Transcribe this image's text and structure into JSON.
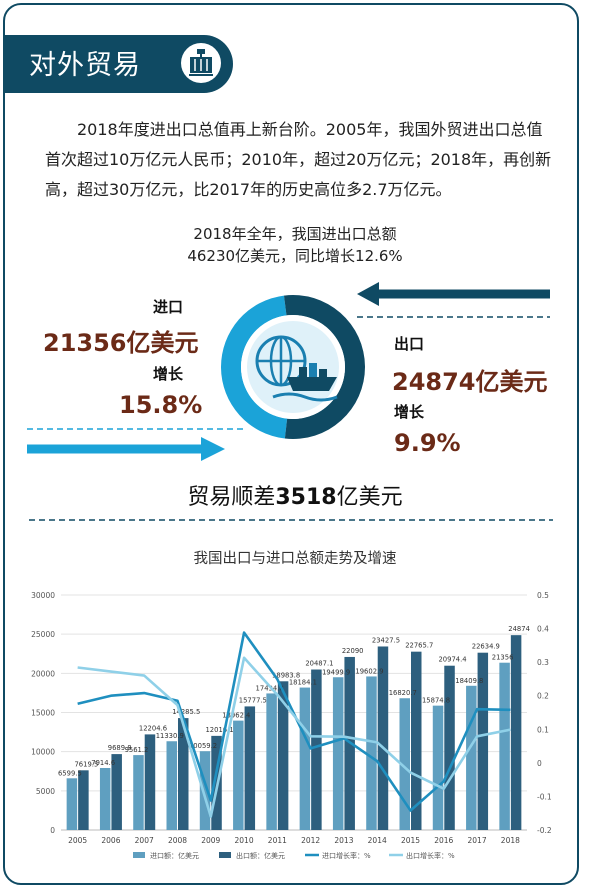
{
  "header": {
    "title": "对外贸易"
  },
  "intro_text": "2018年度进出口总值再上新台阶。2005年，我国外贸进出口总值首次超过10万亿元人民币；2010年，超过20万亿元；2018年，再创新高，超过30万亿元，比2017年的历史高位多2.7万亿元。",
  "summary": {
    "line1": "2018年全年，我国进出口总额",
    "line2": "46230亿美元，同比增长12.6%"
  },
  "import": {
    "label": "进口",
    "value": "21356亿美元",
    "growth_label": "增长",
    "growth": "15.8%",
    "share": 0.462
  },
  "export": {
    "label": "出口",
    "value": "24874亿美元",
    "growth_label": "增长",
    "growth": "9.9%",
    "share": 0.538
  },
  "balance": {
    "prefix": "贸易顺差",
    "value": "3518",
    "suffix": "亿美元"
  },
  "colors": {
    "navy": "#0f4a63",
    "import_blue": "#1ba3d8",
    "bar_import": "#5f9fc0",
    "bar_export": "#2d5f7e",
    "line_export": "#1f8fbf",
    "line_import": "#8fd0e8",
    "value_red": "#6b2a17"
  },
  "chart_data": {
    "type": "bar",
    "title": "我国出口与进口总额走势及增速",
    "categories": [
      "2005",
      "2006",
      "2007",
      "2008",
      "2009",
      "2010",
      "2011",
      "2012",
      "2013",
      "2014",
      "2015",
      "2016",
      "2017",
      "2018"
    ],
    "ylim": [
      0,
      30000
    ],
    "y_ticks": [
      0,
      5000,
      10000,
      15000,
      20000,
      25000,
      30000
    ],
    "y2lim": [
      -0.2,
      0.5
    ],
    "y2_ticks": [
      -0.2,
      -0.1,
      0,
      0.1,
      0.2,
      0.3,
      0.4,
      0.5
    ],
    "series": [
      {
        "name": "进口额：亿美元",
        "kind": "bar",
        "values": [
          6599.5,
          7914.6,
          9561.2,
          11330.9,
          10059.2,
          13962.4,
          17434.8,
          18184.1,
          19499.9,
          19602.9,
          16820.7,
          15874.8,
          18409.8,
          21356
        ]
      },
      {
        "name": "出口额：亿美元",
        "kind": "bar",
        "values": [
          7619.5,
          9689.8,
          12204.6,
          14285.5,
          12016.1,
          15777.5,
          18983.8,
          20487.1,
          22090,
          23427.5,
          22765.7,
          20974.4,
          22634.9,
          24874
        ]
      },
      {
        "name": "进口增长率：%",
        "kind": "line",
        "values": [
          0.176,
          0.2,
          0.208,
          0.185,
          -0.112,
          0.388,
          0.249,
          0.043,
          0.073,
          0.005,
          -0.142,
          -0.055,
          0.16,
          0.158
        ]
      },
      {
        "name": "出口增长率：%",
        "kind": "line",
        "values": [
          0.284,
          0.272,
          0.26,
          0.172,
          -0.16,
          0.313,
          0.203,
          0.079,
          0.078,
          0.061,
          -0.029,
          -0.077,
          0.079,
          0.099
        ]
      }
    ]
  }
}
